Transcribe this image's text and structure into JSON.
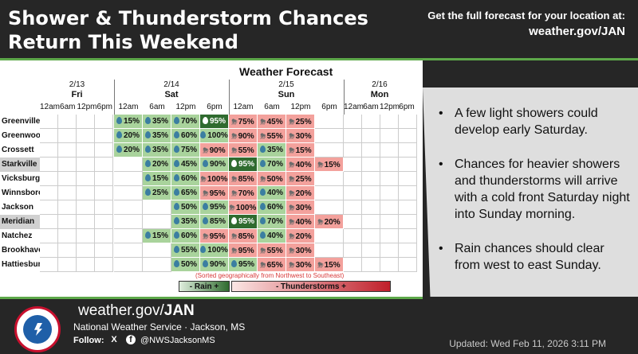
{
  "header": {
    "title": "Shower & Thunderstorm Chances Return This Weekend",
    "forecast_prompt": "Get the full forecast for your location at:",
    "forecast_url": "weather.gov/JAN"
  },
  "chart": {
    "title": "Weather Forecast",
    "days": [
      {
        "date": "2/13",
        "name": "Fri"
      },
      {
        "date": "2/14",
        "name": "Sat"
      },
      {
        "date": "2/15",
        "name": "Sun"
      },
      {
        "date": "2/16",
        "name": "Mon"
      }
    ],
    "times": [
      "12am",
      "6am",
      "12pm",
      "6pm",
      "12am",
      "6am",
      "12pm",
      "6pm",
      "12am",
      "6am",
      "12pm",
      "6pm",
      "12am",
      "6am",
      "12pm",
      "6pm"
    ],
    "sorted_note": "(Sorted geographically from Northwest to Southeast)",
    "legend_rain": "- Rain +",
    "legend_thunder": "- Thunderstorms +"
  },
  "chart_data": {
    "type": "table",
    "columns": [
      "Sat 12am",
      "Sat 6am",
      "Sat 12pm",
      "Sat 6pm",
      "Sun 12am",
      "Sun 6am",
      "Sun 12pm",
      "Sun 6pm"
    ],
    "rows": [
      {
        "city": "Greenville",
        "cells": [
          [
            "r",
            "15%"
          ],
          [
            "r",
            "35%"
          ],
          [
            "r",
            "70%"
          ],
          [
            "dk",
            "95%"
          ],
          [
            "t",
            "75%"
          ],
          [
            "t",
            "45%"
          ],
          [
            "t",
            "25%"
          ],
          [
            "e",
            ""
          ]
        ]
      },
      {
        "city": "Greenwood",
        "cells": [
          [
            "r",
            "20%"
          ],
          [
            "r",
            "35%"
          ],
          [
            "r",
            "60%"
          ],
          [
            "r",
            "100%"
          ],
          [
            "t",
            "90%"
          ],
          [
            "t",
            "55%"
          ],
          [
            "t",
            "30%"
          ],
          [
            "e",
            ""
          ]
        ]
      },
      {
        "city": "Crossett",
        "cells": [
          [
            "r",
            "20%"
          ],
          [
            "r",
            "35%"
          ],
          [
            "r",
            "75%"
          ],
          [
            "t",
            "90%"
          ],
          [
            "t",
            "55%"
          ],
          [
            "r",
            "35%"
          ],
          [
            "t",
            "15%"
          ],
          [
            "e",
            ""
          ]
        ]
      },
      {
        "city": "Starkville",
        "cells": [
          [
            "e",
            ""
          ],
          [
            "r",
            "20%"
          ],
          [
            "r",
            "45%"
          ],
          [
            "r",
            "90%"
          ],
          [
            "dk",
            "95%"
          ],
          [
            "r",
            "70%"
          ],
          [
            "t",
            "40%"
          ],
          [
            "t",
            "15%"
          ]
        ]
      },
      {
        "city": "Vicksburg",
        "cells": [
          [
            "e",
            ""
          ],
          [
            "r",
            "15%"
          ],
          [
            "r",
            "60%"
          ],
          [
            "t",
            "100%"
          ],
          [
            "t",
            "85%"
          ],
          [
            "t",
            "50%"
          ],
          [
            "t",
            "25%"
          ],
          [
            "e",
            ""
          ]
        ]
      },
      {
        "city": "Winnsboro",
        "cells": [
          [
            "e",
            ""
          ],
          [
            "r",
            "25%"
          ],
          [
            "r",
            "65%"
          ],
          [
            "t",
            "95%"
          ],
          [
            "t",
            "70%"
          ],
          [
            "r",
            "40%"
          ],
          [
            "t",
            "20%"
          ],
          [
            "e",
            ""
          ]
        ]
      },
      {
        "city": "Jackson",
        "cells": [
          [
            "e",
            ""
          ],
          [
            "e",
            ""
          ],
          [
            "r",
            "50%"
          ],
          [
            "r",
            "95%"
          ],
          [
            "t",
            "100%"
          ],
          [
            "r",
            "60%"
          ],
          [
            "t",
            "30%"
          ],
          [
            "e",
            ""
          ]
        ]
      },
      {
        "city": "Meridian",
        "cells": [
          [
            "e",
            ""
          ],
          [
            "e",
            ""
          ],
          [
            "r",
            "35%"
          ],
          [
            "r",
            "85%"
          ],
          [
            "dk",
            "95%"
          ],
          [
            "r",
            "70%"
          ],
          [
            "t",
            "40%"
          ],
          [
            "t",
            "20%"
          ]
        ]
      },
      {
        "city": "Natchez",
        "cells": [
          [
            "e",
            ""
          ],
          [
            "r",
            "15%"
          ],
          [
            "r",
            "60%"
          ],
          [
            "t",
            "95%"
          ],
          [
            "t",
            "85%"
          ],
          [
            "r",
            "40%"
          ],
          [
            "t",
            "20%"
          ],
          [
            "e",
            ""
          ]
        ]
      },
      {
        "city": "Brookhaven",
        "cells": [
          [
            "e",
            ""
          ],
          [
            "e",
            ""
          ],
          [
            "r",
            "55%"
          ],
          [
            "r",
            "100%"
          ],
          [
            "t",
            "95%"
          ],
          [
            "t",
            "55%"
          ],
          [
            "t",
            "30%"
          ],
          [
            "e",
            ""
          ]
        ]
      },
      {
        "city": "Hattiesburg",
        "cells": [
          [
            "e",
            ""
          ],
          [
            "e",
            ""
          ],
          [
            "r",
            "50%"
          ],
          [
            "r",
            "90%"
          ],
          [
            "r",
            "95%"
          ],
          [
            "t",
            "65%"
          ],
          [
            "t",
            "30%"
          ],
          [
            "t",
            "15%"
          ]
        ]
      }
    ]
  },
  "bullets": [
    "A few light showers could develop early Saturday.",
    "Chances for heavier showers and thunderstorms will arrive with a cold front Saturday night into Sunday morning.",
    "Rain chances should clear from west to east Sunday."
  ],
  "footer": {
    "url_prefix": "weather.gov/",
    "url_office": "JAN",
    "org": "National Weather Service · Jackson, MS",
    "follow_label": "Follow:",
    "x_icon": "X",
    "fb_icon": "f",
    "handle": "@NWSJacksonMS",
    "updated": "Updated: Wed Feb 11, 2026 3:11 PM"
  },
  "colors": {
    "accent_green": "#5da84a",
    "rain_light": "#a9d39c",
    "rain_dark": "#2f6b2f",
    "thunder": "#f3a19c"
  }
}
